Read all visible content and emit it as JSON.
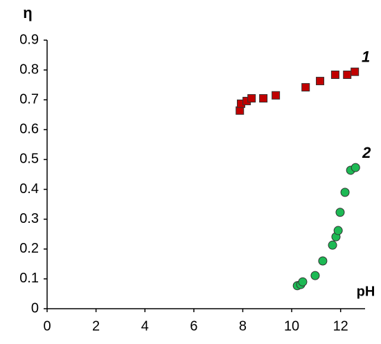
{
  "chart_data": {
    "type": "scatter",
    "x_label": "pH",
    "y_label": "η",
    "xlim": [
      0,
      13
    ],
    "xticks": [
      0,
      2,
      4,
      6,
      8,
      10,
      12
    ],
    "ylim": [
      0,
      0.9
    ],
    "yticks": [
      0,
      0.1,
      0.2,
      0.3,
      0.4,
      0.5,
      0.6,
      0.7,
      0.8,
      0.9
    ],
    "series": [
      {
        "name": "1",
        "color": "#c00000",
        "marker": "square",
        "x": [
          7.88,
          7.93,
          8.16,
          8.36,
          8.84,
          9.35,
          10.57,
          11.16,
          11.78,
          12.27,
          12.58
        ],
        "values": [
          0.664,
          0.687,
          0.696,
          0.705,
          0.705,
          0.715,
          0.742,
          0.763,
          0.784,
          0.784,
          0.794
        ]
      },
      {
        "name": "2",
        "color": "#1db954",
        "marker": "circle",
        "x": [
          10.23,
          10.37,
          10.45,
          10.96,
          11.27,
          11.67,
          11.81,
          11.9,
          11.98,
          12.18,
          12.41,
          12.61
        ],
        "values": [
          0.077,
          0.081,
          0.09,
          0.111,
          0.16,
          0.213,
          0.241,
          0.262,
          0.323,
          0.39,
          0.464,
          0.473
        ]
      }
    ]
  }
}
